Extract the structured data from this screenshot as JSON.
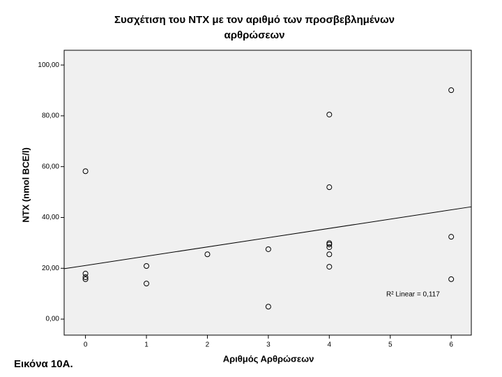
{
  "chart_data": {
    "type": "scatter",
    "title": "Συσχέτιση του NTX με τον αριθμό των προσβεβλημένων αρθρώσεων",
    "x_label": "Αριθμός Αρθρώσεων",
    "y_label": "NTX (nmol BCE/l)",
    "annotation": "R² Linear = 0,117",
    "caption": "Εικόνα 10Α.",
    "x": [
      0,
      0,
      0,
      0,
      1,
      1,
      2,
      3,
      3,
      4,
      4,
      4,
      4,
      4,
      4,
      4,
      6,
      6,
      6
    ],
    "values": [
      58.2,
      17.9,
      16.5,
      15.7,
      20.9,
      14.0,
      25.5,
      27.5,
      4.9,
      80.5,
      51.9,
      29.9,
      29.4,
      28.3,
      25.5,
      20.6,
      90.1,
      32.4,
      15.7
    ],
    "color": "#000000",
    "fit_line": {
      "intercept": 21.1,
      "slope": 3.65
    },
    "xlim": [
      -0.35,
      6.33
    ],
    "ylim": [
      -6.3,
      105.8
    ],
    "xticks": [
      0,
      1,
      2,
      3,
      4,
      5,
      6
    ],
    "yticks": [
      {
        "value": 0,
        "label": "0,00"
      },
      {
        "value": 20,
        "label": "20,00"
      },
      {
        "value": 40,
        "label": "40,00"
      },
      {
        "value": 60,
        "label": "60,00"
      },
      {
        "value": 80,
        "label": "80,00"
      },
      {
        "value": 100,
        "label": "100,00"
      }
    ],
    "grid": false
  }
}
